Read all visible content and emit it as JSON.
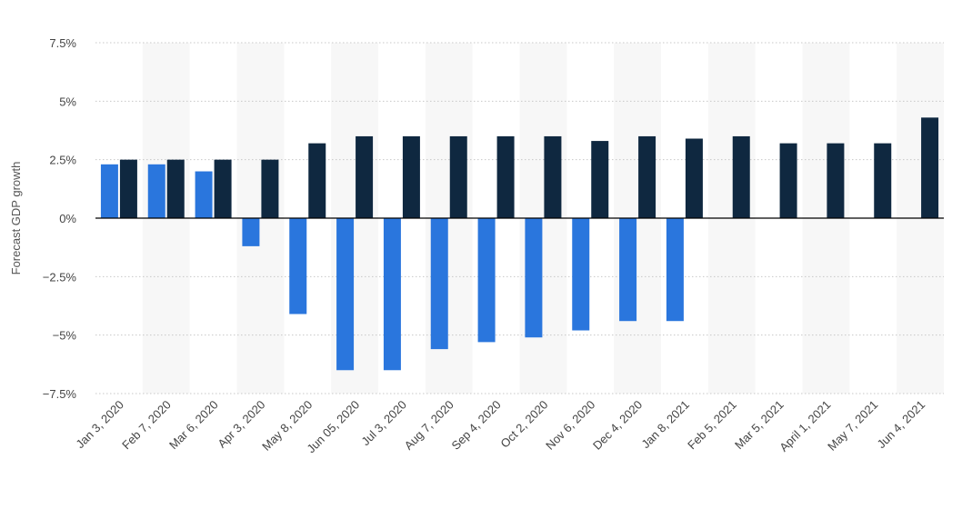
{
  "chart_data": {
    "type": "bar",
    "ylabel": "Forecast GDP growth",
    "y_ticks": [
      "7.5%",
      "5%",
      "2.5%",
      "0%",
      "−2.5%",
      "−5%",
      "−7.5%"
    ],
    "y_tick_values": [
      7.5,
      5,
      2.5,
      0,
      -2.5,
      -5,
      -7.5
    ],
    "ylim": [
      -7.5,
      7.5
    ],
    "grid": true,
    "categories": [
      "Jan 3, 2020",
      "Feb 7, 2020",
      "Mar 6, 2020",
      "Apr 3, 2020",
      "May 8, 2020",
      "Jun 05, 2020",
      "Jul 3, 2020",
      "Aug 7, 2020",
      "Sep 4, 2020",
      "Oct 2, 2020",
      "Nov 6, 2020",
      "Dec 4, 2020",
      "Jan 8, 2021",
      "Feb 5, 2021",
      "Mar 5, 2021",
      "April 1, 2021",
      "May 7, 2021",
      "Jun 4, 2021"
    ],
    "series": [
      {
        "color": "#2a76dd",
        "values": [
          2.3,
          2.3,
          2.0,
          -1.2,
          -4.1,
          -6.5,
          -6.5,
          -5.6,
          -5.3,
          -5.1,
          -4.8,
          -4.4,
          -4.4,
          null,
          null,
          null,
          null,
          null
        ]
      },
      {
        "color": "#0f2840",
        "values": [
          2.5,
          2.5,
          2.5,
          2.5,
          3.2,
          3.5,
          3.5,
          3.5,
          3.5,
          3.5,
          3.3,
          3.5,
          3.4,
          3.5,
          3.2,
          3.2,
          3.2,
          4.3
        ]
      }
    ],
    "band_color": "#f7f7f7",
    "grid_color": "#c8c8c8",
    "zero_line_color": "#000000"
  }
}
